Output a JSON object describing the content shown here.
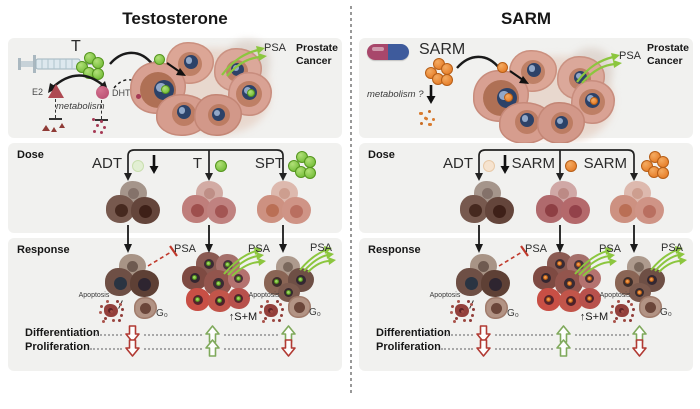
{
  "left": {
    "title": "Testosterone",
    "top": {
      "ligand": "T",
      "psa": "PSA",
      "prostate_line1": "Prostate",
      "prostate_line2": "Cancer",
      "e2": "E2",
      "dht": "DHT",
      "metabolism": "metabolism"
    },
    "dose": {
      "section": "Dose",
      "conditions": [
        {
          "label": "ADT"
        },
        {
          "label": "T"
        },
        {
          "label": "SPT"
        }
      ]
    },
    "response": {
      "section": "Response",
      "psa1": "PSA",
      "psa2": "PSA",
      "psa3": "PSA",
      "apoptosis1": "Apoptosis",
      "apoptosis2": "Apoptosis",
      "g0_1": "G₀",
      "g0_2": "G₀",
      "sm": "↑S+M",
      "differentiation": "Differentiation",
      "proliferation": "Proliferation"
    },
    "indicators": {
      "differentiation": [
        "down",
        "up",
        "up"
      ],
      "proliferation": [
        "down",
        "up",
        "down"
      ]
    }
  },
  "right": {
    "title": "SARM",
    "top": {
      "ligand": "SARM",
      "psa": "PSA",
      "prostate_line1": "Prostate",
      "prostate_line2": "Cancer",
      "metabolism": "metabolism ?"
    },
    "dose": {
      "section": "Dose",
      "conditions": [
        {
          "label": "ADT"
        },
        {
          "label": "SARM"
        },
        {
          "label": "SARM"
        }
      ]
    },
    "response": {
      "section": "Response",
      "psa1": "PSA",
      "psa2": "PSA",
      "psa3": "PSA",
      "apoptosis1": "Apoptosis",
      "apoptosis2": "Apoptosis",
      "g0_1": "G₀",
      "g0_2": "G₀",
      "sm": "↑S+M",
      "differentiation": "Differentiation",
      "proliferation": "Proliferation"
    },
    "indicators": {
      "differentiation": [
        "down",
        "up",
        "up"
      ],
      "proliferation": [
        "down",
        "up",
        "down"
      ]
    }
  },
  "colors": {
    "testosterone_green": "#7DC242",
    "sarm_orange": "#E8832F",
    "psa_arrow_green": "#8CC63E",
    "inhibition_red": "#C0392B",
    "increase_green": "#7FA95B",
    "decrease_red": "#B13A33",
    "e2_red": "#AE4A52",
    "dht_pink": "#BE5577",
    "pill_left": "#A8476B",
    "pill_right": "#3E5B9C",
    "panel_bg": "#F1F1EF"
  }
}
